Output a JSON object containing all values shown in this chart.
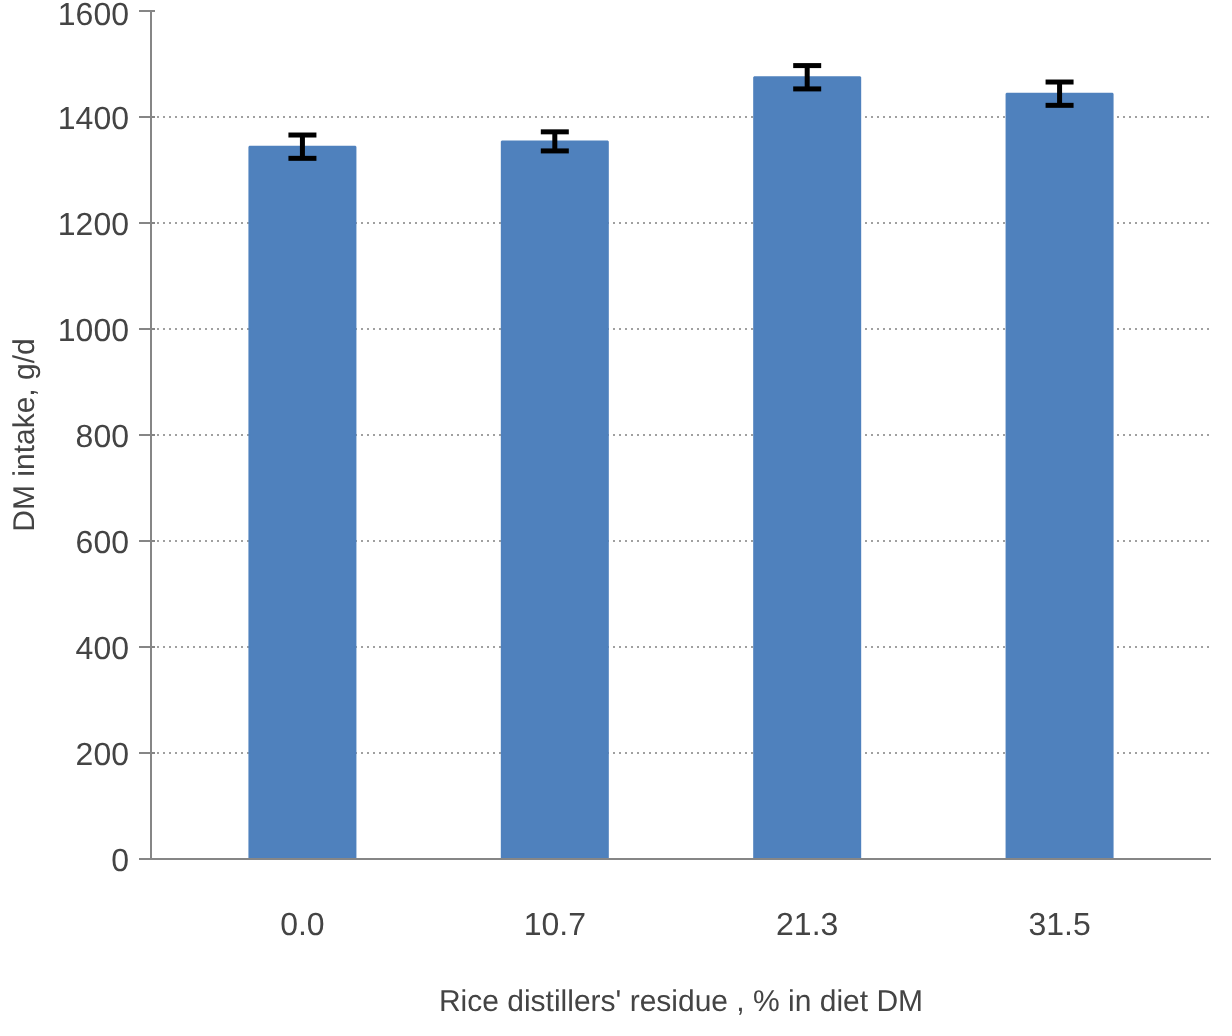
{
  "chart_data": {
    "type": "bar",
    "xlabel": "Rice distillers' residue , % in diet DM",
    "ylabel": "DM intake, g/d",
    "categories": [
      "0.0",
      "10.7",
      "21.3",
      "31.5"
    ],
    "values": [
      1344,
      1354,
      1475,
      1444
    ],
    "errors": [
      22,
      18,
      22,
      22
    ],
    "color": "#4f81bd",
    "ylim": [
      0,
      1600
    ],
    "yticks": [
      0,
      200,
      400,
      600,
      800,
      1000,
      1200,
      1400,
      1600
    ],
    "grid": "y"
  }
}
